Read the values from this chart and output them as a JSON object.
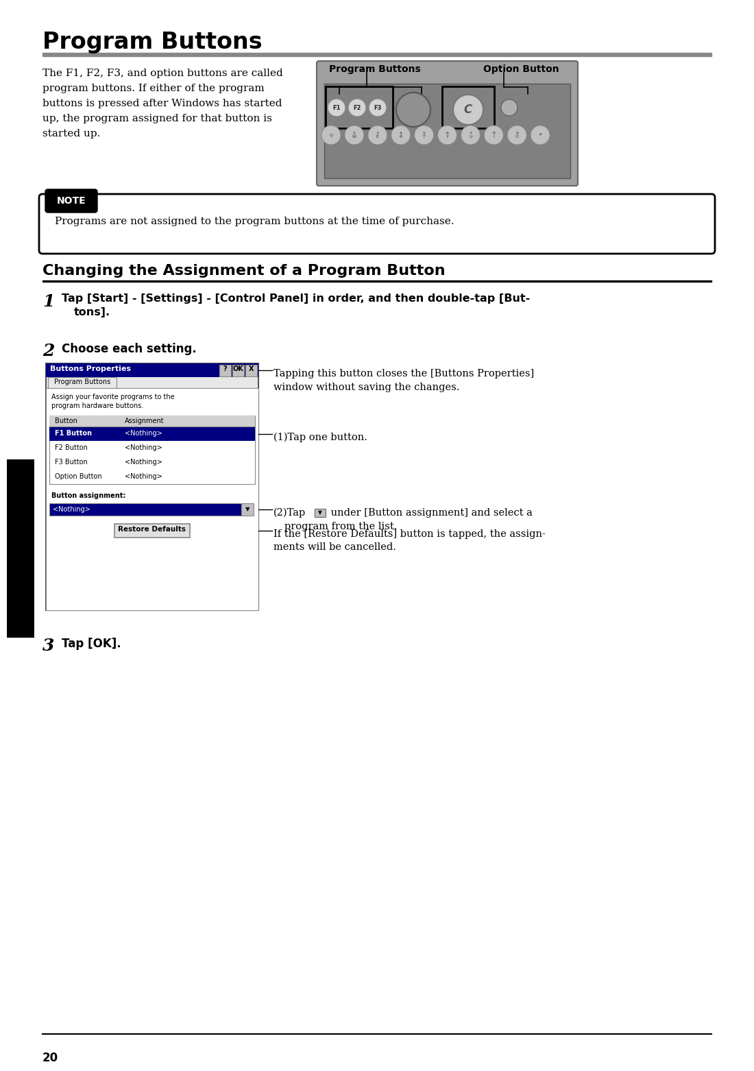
{
  "title": "Program Buttons",
  "page_number": "20",
  "bg_color": "#ffffff",
  "title_color": "#000000",
  "intro_text_lines": [
    "The F1, F2, F3, and option buttons are called",
    "program buttons. If either of the program",
    "buttons is pressed after Windows has started",
    "up, the program assigned for that button is",
    "started up."
  ],
  "pb_label": "Program Buttons",
  "ob_label": "Option Button",
  "note_label": "NOTE",
  "note_text": "Programs are not assigned to the program buttons at the time of purchase.",
  "section2_title": "Changing the Assignment of a Program Button",
  "step1_text_line1": "Tap [Start] - [Settings] - [Control Panel] in order, and then double-tap [But-",
  "step1_text_line2": "tons].",
  "step2_label": "Choose each setting.",
  "annotation1": "Tapping this button closes the [Buttons Properties]\nwindow without saving the changes.",
  "annotation2": "(1)Tap one button.",
  "annotation4": "If the [Restore Defaults] button is tapped, the assign-\nments will be cancelled.",
  "step3_text": "Tap [OK].",
  "win_title": "Buttons Properties",
  "win_tab": "Program Buttons",
  "win_desc1": "Assign your favorite programs to the",
  "win_desc2": "program hardware buttons.",
  "win_col1": "Button",
  "win_col2": "Assignment",
  "win_rows": [
    [
      "F1 Button",
      "<Nothing>"
    ],
    [
      "F2 Button",
      "<Nothing>"
    ],
    [
      "F3 Button",
      "<Nothing>"
    ],
    [
      "Option Button",
      "<Nothing>"
    ]
  ],
  "win_field_label": "Button assignment:",
  "win_field_value": "<Nothing>",
  "win_btn": "Restore Defaults",
  "kb_keys": [
    "Q",
    "2\nW",
    "3\nE",
    "4\nR",
    "5\nT",
    "6\nY",
    "7\nU",
    "8\nI",
    "9\nO",
    "P"
  ]
}
